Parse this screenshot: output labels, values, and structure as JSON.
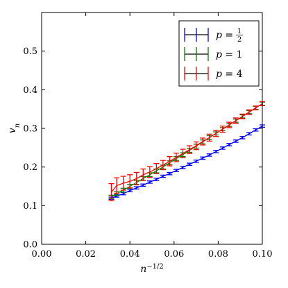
{
  "chart_data": {
    "type": "line",
    "xlabel": "n^{-1/2}",
    "xlabel_base": "n",
    "xlabel_exp": "−1/2",
    "ylabel": "v_n",
    "ylabel_base": "v",
    "ylabel_sub": "n",
    "xlim": [
      0.0,
      0.1
    ],
    "ylim": [
      0.0,
      0.6
    ],
    "xticks": [
      "0.00",
      "0.02",
      "0.04",
      "0.06",
      "0.08",
      "0.10"
    ],
    "yticks": [
      "0.0",
      "0.1",
      "0.2",
      "0.3",
      "0.4",
      "0.5"
    ],
    "legend_position": "top-right",
    "legend": [
      {
        "prefix": "p = ",
        "value": "1/2",
        "fraction_num": "1",
        "fraction_den": "2",
        "color": "#0000ff"
      },
      {
        "prefix": "p = ",
        "value": "1",
        "color": "#008000"
      },
      {
        "prefix": "p = ",
        "value": "4",
        "color": "#ff0000"
      }
    ],
    "series": [
      {
        "label": "p = 1/2",
        "color": "#0000ff",
        "points": [
          {
            "x": 0.0316,
            "y": 0.119,
            "err": 0.003
          },
          {
            "x": 0.034,
            "y": 0.125,
            "err": 0.003
          },
          {
            "x": 0.037,
            "y": 0.131,
            "err": 0.003
          },
          {
            "x": 0.04,
            "y": 0.139,
            "err": 0.003
          },
          {
            "x": 0.043,
            "y": 0.146,
            "err": 0.003
          },
          {
            "x": 0.046,
            "y": 0.153,
            "err": 0.003
          },
          {
            "x": 0.049,
            "y": 0.161,
            "err": 0.003
          },
          {
            "x": 0.052,
            "y": 0.168,
            "err": 0.003
          },
          {
            "x": 0.055,
            "y": 0.176,
            "err": 0.003
          },
          {
            "x": 0.058,
            "y": 0.183,
            "err": 0.003
          },
          {
            "x": 0.061,
            "y": 0.191,
            "err": 0.003
          },
          {
            "x": 0.064,
            "y": 0.199,
            "err": 0.003
          },
          {
            "x": 0.067,
            "y": 0.207,
            "err": 0.003
          },
          {
            "x": 0.07,
            "y": 0.215,
            "err": 0.003
          },
          {
            "x": 0.073,
            "y": 0.223,
            "err": 0.003
          },
          {
            "x": 0.076,
            "y": 0.231,
            "err": 0.003
          },
          {
            "x": 0.079,
            "y": 0.24,
            "err": 0.003
          },
          {
            "x": 0.082,
            "y": 0.249,
            "err": 0.003
          },
          {
            "x": 0.085,
            "y": 0.258,
            "err": 0.003
          },
          {
            "x": 0.088,
            "y": 0.267,
            "err": 0.003
          },
          {
            "x": 0.091,
            "y": 0.276,
            "err": 0.003
          },
          {
            "x": 0.094,
            "y": 0.286,
            "err": 0.003
          },
          {
            "x": 0.097,
            "y": 0.296,
            "err": 0.003
          },
          {
            "x": 0.1,
            "y": 0.306,
            "err": 0.003
          }
        ]
      },
      {
        "label": "p = 1",
        "color": "#008000",
        "points": [
          {
            "x": 0.0316,
            "y": 0.123,
            "err": 0.004
          },
          {
            "x": 0.034,
            "y": 0.131,
            "err": 0.005
          },
          {
            "x": 0.037,
            "y": 0.14,
            "err": 0.005
          },
          {
            "x": 0.04,
            "y": 0.15,
            "err": 0.005
          },
          {
            "x": 0.043,
            "y": 0.16,
            "err": 0.005
          },
          {
            "x": 0.046,
            "y": 0.17,
            "err": 0.005
          },
          {
            "x": 0.049,
            "y": 0.18,
            "err": 0.005
          },
          {
            "x": 0.052,
            "y": 0.19,
            "err": 0.005
          },
          {
            "x": 0.055,
            "y": 0.2,
            "err": 0.005
          },
          {
            "x": 0.058,
            "y": 0.211,
            "err": 0.005
          },
          {
            "x": 0.061,
            "y": 0.222,
            "err": 0.005
          },
          {
            "x": 0.064,
            "y": 0.232,
            "err": 0.005
          },
          {
            "x": 0.067,
            "y": 0.243,
            "err": 0.005
          },
          {
            "x": 0.07,
            "y": 0.254,
            "err": 0.005
          },
          {
            "x": 0.073,
            "y": 0.265,
            "err": 0.005
          },
          {
            "x": 0.076,
            "y": 0.276,
            "err": 0.005
          },
          {
            "x": 0.079,
            "y": 0.287,
            "err": 0.004
          },
          {
            "x": 0.082,
            "y": 0.298,
            "err": 0.004
          },
          {
            "x": 0.085,
            "y": 0.309,
            "err": 0.004
          },
          {
            "x": 0.088,
            "y": 0.32,
            "err": 0.004
          },
          {
            "x": 0.091,
            "y": 0.331,
            "err": 0.004
          },
          {
            "x": 0.094,
            "y": 0.342,
            "err": 0.004
          },
          {
            "x": 0.097,
            "y": 0.353,
            "err": 0.004
          },
          {
            "x": 0.1,
            "y": 0.364,
            "err": 0.004
          }
        ]
      },
      {
        "label": "p = 4",
        "color": "#ff0000",
        "points": [
          {
            "x": 0.0316,
            "y": 0.135,
            "err": 0.022
          },
          {
            "x": 0.034,
            "y": 0.152,
            "err": 0.02
          },
          {
            "x": 0.037,
            "y": 0.158,
            "err": 0.018
          },
          {
            "x": 0.04,
            "y": 0.163,
            "err": 0.017
          },
          {
            "x": 0.043,
            "y": 0.17,
            "err": 0.016
          },
          {
            "x": 0.046,
            "y": 0.18,
            "err": 0.015
          },
          {
            "x": 0.049,
            "y": 0.187,
            "err": 0.014
          },
          {
            "x": 0.052,
            "y": 0.196,
            "err": 0.013
          },
          {
            "x": 0.055,
            "y": 0.205,
            "err": 0.012
          },
          {
            "x": 0.058,
            "y": 0.215,
            "err": 0.012
          },
          {
            "x": 0.061,
            "y": 0.225,
            "err": 0.011
          },
          {
            "x": 0.064,
            "y": 0.235,
            "err": 0.011
          },
          {
            "x": 0.067,
            "y": 0.245,
            "err": 0.01
          },
          {
            "x": 0.07,
            "y": 0.255,
            "err": 0.01
          },
          {
            "x": 0.073,
            "y": 0.266,
            "err": 0.009
          },
          {
            "x": 0.076,
            "y": 0.276,
            "err": 0.009
          },
          {
            "x": 0.079,
            "y": 0.287,
            "err": 0.008
          },
          {
            "x": 0.082,
            "y": 0.298,
            "err": 0.008
          },
          {
            "x": 0.085,
            "y": 0.309,
            "err": 0.007
          },
          {
            "x": 0.088,
            "y": 0.32,
            "err": 0.007
          },
          {
            "x": 0.091,
            "y": 0.331,
            "err": 0.006
          },
          {
            "x": 0.094,
            "y": 0.342,
            "err": 0.006
          },
          {
            "x": 0.097,
            "y": 0.353,
            "err": 0.005
          },
          {
            "x": 0.1,
            "y": 0.364,
            "err": 0.005
          }
        ]
      }
    ]
  }
}
